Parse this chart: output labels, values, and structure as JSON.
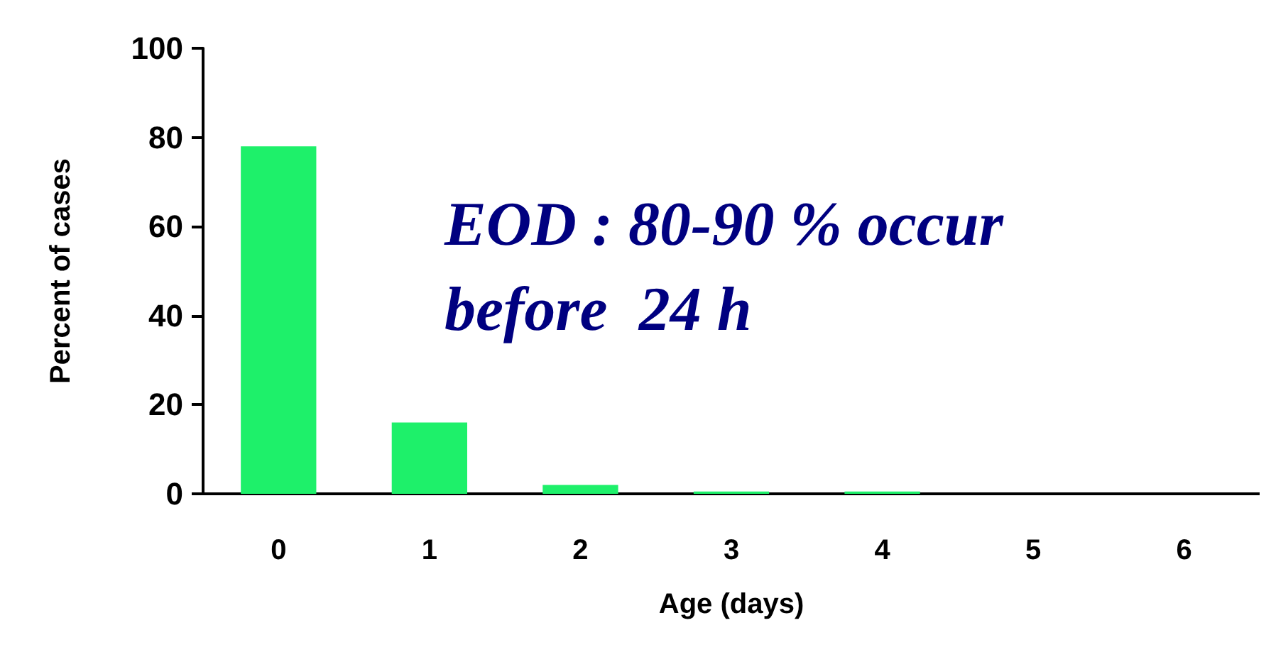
{
  "chart_data": {
    "type": "bar",
    "xlabel": "Age (days)",
    "ylabel": "Percent of cases",
    "categories": [
      "0",
      "1",
      "2",
      "3",
      "4",
      "5",
      "6"
    ],
    "values": [
      78,
      16,
      2,
      0.5,
      0.5,
      0,
      0
    ],
    "color": "#1ef06a",
    "ylim": [
      0,
      100
    ],
    "yticks": [
      0,
      20,
      40,
      60,
      80,
      100
    ],
    "grid": false,
    "annotations": [
      "EOD : 80-90 % occur\nbefore  24 h"
    ]
  }
}
